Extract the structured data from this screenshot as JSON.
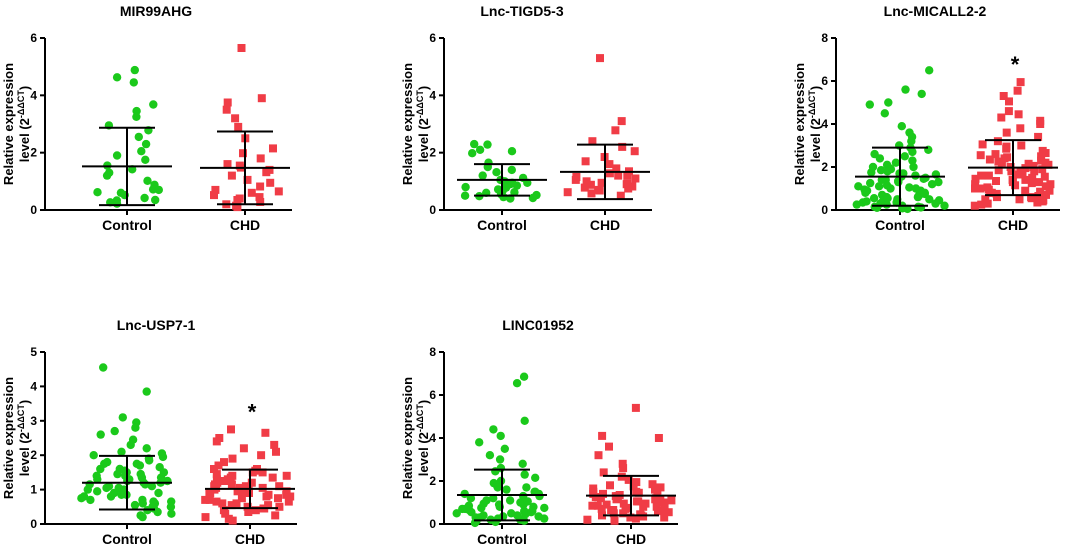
{
  "ylabel_line1": "Relative expression",
  "ylabel_line2": "level (2",
  "ylabel_sup": "-ΔΔCT",
  "ylabel_close": ")",
  "colors": {
    "control": "#1bc91b",
    "chd": "#f03c46",
    "axis": "#000000"
  },
  "chart_data": [
    {
      "type": "scatter",
      "title": "MIR99AHG",
      "categories": [
        "Control",
        "CHD"
      ],
      "ylim": [
        0,
        6
      ],
      "yticks": [
        0,
        2,
        4,
        6
      ],
      "significance": "",
      "series": [
        {
          "name": "Control",
          "marker": "circle",
          "mean": 1.52,
          "sd": 1.35,
          "values": [
            4.88,
            4.63,
            4.45,
            3.68,
            3.45,
            3.25,
            2.95,
            2.78,
            2.55,
            2.3,
            2.05,
            1.9,
            1.75,
            1.55,
            1.42,
            1.3,
            1.2,
            1.02,
            0.88,
            0.72,
            0.62,
            0.52,
            0.42,
            0.33,
            0.27,
            0.22,
            0.7,
            0.35,
            0.6
          ]
        },
        {
          "name": "CHD",
          "marker": "square",
          "mean": 1.47,
          "sd": 1.27,
          "values": [
            5.65,
            3.9,
            3.75,
            3.5,
            3.2,
            2.9,
            2.5,
            2.15,
            1.98,
            1.8,
            1.6,
            1.48,
            1.4,
            1.32,
            1.2,
            1.05,
            0.95,
            0.82,
            0.7,
            0.6,
            0.52,
            0.45,
            0.35,
            0.28,
            0.2,
            0.15,
            0.1,
            1.55,
            0.65,
            0.4
          ]
        }
      ]
    },
    {
      "type": "scatter",
      "title": "Lnc-TIGD5-3",
      "categories": [
        "Control",
        "CHD"
      ],
      "ylim": [
        0,
        6
      ],
      "yticks": [
        0,
        2,
        4,
        6
      ],
      "significance": "",
      "series": [
        {
          "name": "Control",
          "marker": "circle",
          "mean": 1.05,
          "sd": 0.55,
          "values": [
            2.3,
            2.28,
            2.1,
            2.05,
            1.98,
            1.65,
            1.5,
            1.32,
            1.2,
            1.12,
            1.05,
            1.0,
            0.95,
            0.9,
            0.85,
            0.8,
            0.78,
            0.72,
            0.68,
            0.62,
            0.6,
            0.55,
            0.52,
            0.48,
            0.45,
            0.42,
            0.4,
            0.5,
            0.95,
            1.4
          ]
        },
        {
          "name": "CHD",
          "marker": "square",
          "mean": 1.33,
          "sd": 0.95,
          "values": [
            5.3,
            3.1,
            2.78,
            2.4,
            2.2,
            2.05,
            1.85,
            1.7,
            1.6,
            1.45,
            1.35,
            1.28,
            1.2,
            1.15,
            1.1,
            1.05,
            1.0,
            0.95,
            0.92,
            0.88,
            0.82,
            0.78,
            0.75,
            0.7,
            0.68,
            0.62,
            0.58,
            0.5,
            1.2,
            0.9
          ]
        }
      ]
    },
    {
      "type": "scatter",
      "title": "Lnc-MICALL2-2",
      "categories": [
        "Control",
        "CHD"
      ],
      "ylim": [
        0,
        8
      ],
      "yticks": [
        0,
        2,
        4,
        6,
        8
      ],
      "significance": "*",
      "series": [
        {
          "name": "Control",
          "marker": "circle",
          "mean": 1.55,
          "sd": 1.35,
          "values": [
            6.5,
            5.6,
            5.4,
            5.0,
            4.9,
            4.5,
            3.9,
            3.6,
            3.4,
            3.2,
            3.0,
            2.9,
            2.8,
            2.7,
            2.6,
            2.5,
            2.4,
            2.3,
            2.2,
            2.1,
            2.0,
            1.95,
            1.9,
            1.85,
            1.8,
            1.75,
            1.7,
            1.65,
            1.6,
            1.55,
            1.5,
            1.45,
            1.4,
            1.35,
            1.3,
            1.25,
            1.2,
            1.15,
            1.1,
            1.05,
            1.0,
            0.95,
            0.9,
            0.85,
            0.8,
            0.75,
            0.7,
            0.65,
            0.6,
            0.55,
            0.5,
            0.45,
            0.4,
            0.35,
            0.3,
            0.25,
            0.2,
            0.15,
            0.1,
            0.05,
            1.3,
            1.1,
            0.9,
            0.7,
            0.5,
            0.3,
            0.2,
            0.12,
            0.08,
            0.6,
            1.0,
            1.4,
            0.4,
            0.8,
            0.25,
            2.0,
            1.7,
            0.35,
            0.55,
            0.15
          ]
        },
        {
          "name": "CHD",
          "marker": "square",
          "mean": 1.97,
          "sd": 1.28,
          "values": [
            5.95,
            5.55,
            5.3,
            5.05,
            4.6,
            4.45,
            4.3,
            4.15,
            4.0,
            3.8,
            3.6,
            3.4,
            3.2,
            3.05,
            2.95,
            2.85,
            2.75,
            2.65,
            2.55,
            2.45,
            2.4,
            2.35,
            2.3,
            2.25,
            2.2,
            2.15,
            2.1,
            2.05,
            2.0,
            1.95,
            1.9,
            1.85,
            1.8,
            1.75,
            1.7,
            1.65,
            1.6,
            1.55,
            1.5,
            1.45,
            1.4,
            1.35,
            1.3,
            1.25,
            1.2,
            1.15,
            1.1,
            1.05,
            1.0,
            0.95,
            0.9,
            0.85,
            0.8,
            0.75,
            0.7,
            0.65,
            0.6,
            0.55,
            0.5,
            0.45,
            0.4,
            0.35,
            0.3,
            0.25,
            0.2,
            2.6,
            2.2,
            1.8,
            1.4,
            1.0,
            0.6,
            3.0,
            2.5,
            1.6,
            1.2,
            0.8,
            2.0,
            1.3,
            0.9,
            0.5
          ]
        }
      ]
    },
    {
      "type": "scatter",
      "title": "Lnc-USP7-1",
      "categories": [
        "Control",
        "CHD"
      ],
      "ylim": [
        0,
        5
      ],
      "yticks": [
        0,
        1,
        2,
        3,
        4,
        5
      ],
      "significance": "*",
      "series": [
        {
          "name": "Control",
          "marker": "circle",
          "mean": 1.2,
          "sd": 0.78,
          "values": [
            4.55,
            3.85,
            3.1,
            2.95,
            2.8,
            2.7,
            2.6,
            2.45,
            2.3,
            2.2,
            2.1,
            2.0,
            1.95,
            1.9,
            1.85,
            1.8,
            1.75,
            1.7,
            1.65,
            1.6,
            1.55,
            1.5,
            1.45,
            1.4,
            1.35,
            1.3,
            1.25,
            1.2,
            1.15,
            1.1,
            1.05,
            1.0,
            0.95,
            0.9,
            0.85,
            0.8,
            0.75,
            0.7,
            0.65,
            0.6,
            0.55,
            0.5,
            0.45,
            0.4,
            0.35,
            0.3,
            0.25,
            0.2,
            1.3,
            1.1,
            0.9,
            0.7,
            1.5,
            1.2,
            1.0,
            0.8,
            0.6,
            1.4,
            1.6,
            1.25,
            1.05,
            0.95,
            1.15,
            1.35,
            0.85,
            1.75,
            2.05,
            0.65,
            0.5,
            1.45
          ]
        },
        {
          "name": "CHD",
          "marker": "square",
          "mean": 1.02,
          "sd": 0.56,
          "values": [
            2.75,
            2.65,
            2.5,
            2.4,
            2.3,
            2.2,
            2.1,
            2.0,
            1.9,
            1.8,
            1.7,
            1.6,
            1.55,
            1.5,
            1.45,
            1.4,
            1.35,
            1.3,
            1.25,
            1.2,
            1.15,
            1.1,
            1.05,
            1.0,
            0.95,
            0.9,
            0.85,
            0.8,
            0.75,
            0.7,
            0.65,
            0.6,
            0.55,
            0.5,
            0.45,
            0.4,
            0.35,
            0.3,
            0.25,
            0.2,
            0.15,
            0.1,
            1.05,
            0.95,
            1.0,
            1.1,
            0.9,
            0.85,
            1.15,
            1.2,
            0.8,
            0.75,
            1.25,
            0.7,
            1.3,
            0.65,
            1.35,
            0.6,
            1.4,
            0.55,
            1.0,
            0.95,
            1.05,
            0.9,
            1.1,
            0.5,
            0.45,
            1.5,
            1.6,
            0.4
          ]
        }
      ]
    },
    {
      "type": "scatter",
      "title": "LINC01952",
      "categories": [
        "Control",
        "CHD"
      ],
      "ylim": [
        0,
        8
      ],
      "yticks": [
        0,
        2,
        4,
        6,
        8
      ],
      "significance": "",
      "series": [
        {
          "name": "Control",
          "marker": "circle",
          "mean": 1.35,
          "sd": 1.18,
          "values": [
            6.85,
            6.55,
            4.8,
            4.4,
            4.1,
            3.8,
            3.5,
            3.2,
            3.0,
            2.8,
            2.6,
            2.45,
            2.3,
            2.15,
            2.0,
            1.9,
            1.8,
            1.7,
            1.6,
            1.5,
            1.4,
            1.3,
            1.2,
            1.1,
            1.0,
            0.95,
            0.9,
            0.85,
            0.8,
            0.75,
            0.7,
            0.65,
            0.6,
            0.55,
            0.5,
            0.45,
            0.4,
            0.35,
            0.3,
            0.25,
            0.2,
            0.15,
            0.1,
            0.05,
            1.2,
            1.0,
            0.8,
            0.6,
            0.4,
            0.2,
            1.5,
            1.3,
            1.1,
            0.9,
            0.7,
            0.5,
            0.3,
            1.7,
            1.4,
            0.75,
            0.35,
            1.05,
            0.55,
            0.25,
            0.15
          ]
        },
        {
          "name": "CHD",
          "marker": "square",
          "mean": 1.32,
          "sd": 0.92,
          "values": [
            5.4,
            4.1,
            4.0,
            3.6,
            3.2,
            2.8,
            2.6,
            2.4,
            2.2,
            2.05,
            1.95,
            1.85,
            1.75,
            1.65,
            1.55,
            1.5,
            1.45,
            1.4,
            1.35,
            1.3,
            1.25,
            1.2,
            1.15,
            1.1,
            1.05,
            1.0,
            0.95,
            0.9,
            0.85,
            0.8,
            0.75,
            0.7,
            0.65,
            0.6,
            0.55,
            0.5,
            0.45,
            0.4,
            0.35,
            0.3,
            0.25,
            0.2,
            0.15,
            1.3,
            1.1,
            0.9,
            0.7,
            1.5,
            1.2,
            1.0,
            0.8,
            0.6,
            1.4,
            1.6,
            1.25,
            0.95,
            1.15,
            0.85,
            1.05,
            0.5,
            1.7,
            0.4,
            1.8,
            0.3,
            0.65
          ]
        }
      ]
    }
  ]
}
